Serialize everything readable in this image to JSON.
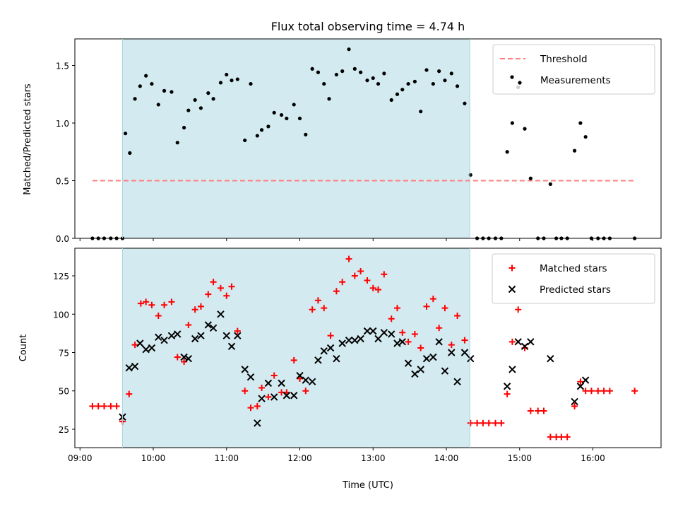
{
  "chart_data": [
    {
      "type": "scatter",
      "title": "Flux total observing time = 4.74 h",
      "xlabel": "",
      "ylabel": "Matched/Predicted stars",
      "x_unit": "hours (UTC, decimal)",
      "xlim": [
        8.93,
        16.93
      ],
      "ylim": [
        0,
        1.73
      ],
      "y_ticks": [
        "0.0",
        "0.5",
        "1.0",
        "1.5"
      ],
      "y_tick_values": [
        0,
        0.5,
        1.0,
        1.5
      ],
      "shaded_region": [
        9.58,
        14.32
      ],
      "shaded_color": "#d3eaf0",
      "grid": false,
      "legend_position": "top-right",
      "series": [
        {
          "name": "Threshold",
          "style": "dashed-line",
          "color": "#ff7f7f",
          "x": [
            9.17,
            16.57
          ],
          "y": [
            0.5,
            0.5
          ]
        },
        {
          "name": "Measurements",
          "style": "dot",
          "color": "#000000",
          "x": [
            9.17,
            9.25,
            9.33,
            9.42,
            9.5,
            9.58,
            9.62,
            9.68,
            9.75,
            9.82,
            9.9,
            9.98,
            10.07,
            10.15,
            10.25,
            10.33,
            10.42,
            10.48,
            10.57,
            10.65,
            10.75,
            10.82,
            10.92,
            11.0,
            11.07,
            11.15,
            11.25,
            11.33,
            11.42,
            11.48,
            11.57,
            11.65,
            11.75,
            11.82,
            11.92,
            12.0,
            12.08,
            12.17,
            12.25,
            12.33,
            12.4,
            12.5,
            12.58,
            12.67,
            12.75,
            12.83,
            12.92,
            13.0,
            13.07,
            13.15,
            13.25,
            13.33,
            13.4,
            13.48,
            13.57,
            13.65,
            13.73,
            13.82,
            13.9,
            13.98,
            14.07,
            14.15,
            14.25,
            14.33,
            14.42,
            14.5,
            14.58,
            14.67,
            14.75,
            14.83,
            14.9,
            14.98,
            15.07,
            15.15,
            15.25,
            15.33,
            15.42,
            15.5,
            15.57,
            15.65,
            15.75,
            15.83,
            15.9,
            15.98,
            16.07,
            16.15,
            16.23,
            16.57
          ],
          "y": [
            0,
            0,
            0,
            0,
            0,
            0,
            0.91,
            0.74,
            1.21,
            1.32,
            1.41,
            1.34,
            1.16,
            1.28,
            1.27,
            0.83,
            0.96,
            1.11,
            1.2,
            1.13,
            1.26,
            1.21,
            1.35,
            1.42,
            1.37,
            1.38,
            0.85,
            1.34,
            0.89,
            0.94,
            0.97,
            1.09,
            1.07,
            1.04,
            1.16,
            1.04,
            0.9,
            1.47,
            1.44,
            1.34,
            1.21,
            1.42,
            1.45,
            1.64,
            1.47,
            1.44,
            1.37,
            1.39,
            1.34,
            1.43,
            1.2,
            1.25,
            1.29,
            1.34,
            1.36,
            1.1,
            1.46,
            1.34,
            1.45,
            1.37,
            1.43,
            1.32,
            1.17,
            0.55,
            0,
            0,
            0,
            0,
            0,
            0.75,
            1.0,
            1.31,
            0.95,
            0.52,
            0,
            0,
            0.47,
            0,
            0,
            0,
            0.76,
            1.0,
            0.88,
            0,
            0,
            0,
            0,
            0
          ]
        }
      ]
    },
    {
      "type": "scatter",
      "title": "",
      "xlabel": "Time (UTC)",
      "ylabel": "Count",
      "x_unit": "hours (UTC, decimal)",
      "xlim": [
        8.93,
        16.93
      ],
      "ylim": [
        13,
        143
      ],
      "x_ticks": [
        "09:00",
        "10:00",
        "11:00",
        "12:00",
        "13:00",
        "14:00",
        "15:00",
        "16:00"
      ],
      "x_tick_values": [
        9,
        10,
        11,
        12,
        13,
        14,
        15,
        16
      ],
      "y_ticks": [
        "25",
        "50",
        "75",
        "100",
        "125"
      ],
      "y_tick_values": [
        25,
        50,
        75,
        100,
        125
      ],
      "shaded_region": [
        9.58,
        14.32
      ],
      "shaded_color": "#d3eaf0",
      "grid": false,
      "legend_position": "top-right",
      "series": [
        {
          "name": "Matched stars",
          "style": "plus",
          "color": "#ff0000",
          "x": [
            9.17,
            9.25,
            9.33,
            9.42,
            9.5,
            9.58,
            9.67,
            9.75,
            9.83,
            9.9,
            9.98,
            10.07,
            10.15,
            10.25,
            10.33,
            10.42,
            10.48,
            10.57,
            10.65,
            10.75,
            10.82,
            10.92,
            11.0,
            11.07,
            11.15,
            11.25,
            11.33,
            11.42,
            11.48,
            11.57,
            11.65,
            11.75,
            11.82,
            11.92,
            12.0,
            12.08,
            12.17,
            12.25,
            12.33,
            12.42,
            12.5,
            12.58,
            12.67,
            12.75,
            12.83,
            12.92,
            13.0,
            13.07,
            13.15,
            13.25,
            13.33,
            13.4,
            13.48,
            13.57,
            13.65,
            13.73,
            13.82,
            13.9,
            13.98,
            14.07,
            14.15,
            14.25,
            14.33,
            14.42,
            14.5,
            14.58,
            14.67,
            14.75,
            14.83,
            14.9,
            14.98,
            15.07,
            15.15,
            15.25,
            15.33,
            15.42,
            15.5,
            15.57,
            15.65,
            15.75,
            15.83,
            15.9,
            15.98,
            16.07,
            16.15,
            16.23,
            16.57
          ],
          "y": [
            40,
            40,
            40,
            40,
            40,
            30,
            48,
            80,
            107,
            108,
            106,
            99,
            106,
            108,
            72,
            69,
            93,
            103,
            105,
            113,
            121,
            117,
            112,
            118,
            89,
            50,
            39,
            40,
            52,
            46,
            60,
            49,
            49,
            70,
            58,
            50,
            103,
            109,
            104,
            86,
            115,
            121,
            136,
            125,
            128,
            122,
            117,
            116,
            126,
            97,
            104,
            88,
            82,
            87,
            78,
            105,
            110,
            91,
            104,
            80,
            99,
            83,
            29,
            29,
            29,
            29,
            29,
            29,
            48,
            82,
            103,
            78,
            37,
            37,
            37,
            20,
            20,
            20,
            20,
            40,
            56,
            50,
            50,
            50,
            50,
            50,
            50
          ]
        },
        {
          "name": "Predicted stars",
          "style": "x",
          "color": "#000000",
          "x": [
            9.58,
            9.67,
            9.75,
            9.82,
            9.9,
            9.98,
            10.07,
            10.15,
            10.25,
            10.33,
            10.42,
            10.48,
            10.57,
            10.65,
            10.75,
            10.82,
            10.92,
            11.0,
            11.07,
            11.15,
            11.25,
            11.33,
            11.42,
            11.48,
            11.57,
            11.65,
            11.75,
            11.82,
            11.92,
            12.0,
            12.08,
            12.17,
            12.25,
            12.33,
            12.42,
            12.5,
            12.58,
            12.67,
            12.75,
            12.83,
            12.92,
            13.0,
            13.07,
            13.15,
            13.25,
            13.33,
            13.4,
            13.48,
            13.57,
            13.65,
            13.73,
            13.82,
            13.9,
            13.98,
            14.07,
            14.15,
            14.25,
            14.33,
            14.83,
            14.9,
            14.98,
            15.07,
            15.15,
            15.42,
            15.75,
            15.83,
            15.9
          ],
          "y": [
            33,
            65,
            66,
            81,
            77,
            78,
            85,
            83,
            86,
            87,
            72,
            71,
            84,
            86,
            93,
            91,
            100,
            86,
            79,
            86,
            64,
            59,
            29,
            45,
            55,
            46,
            55,
            47,
            47,
            60,
            57,
            56,
            70,
            76,
            78,
            71,
            81,
            83,
            83,
            84,
            89,
            89,
            84,
            88,
            87,
            81,
            82,
            68,
            61,
            64,
            71,
            72,
            82,
            63,
            75,
            56,
            75,
            71,
            53,
            64,
            82,
            79,
            82,
            71,
            43,
            53,
            57
          ]
        }
      ]
    }
  ]
}
